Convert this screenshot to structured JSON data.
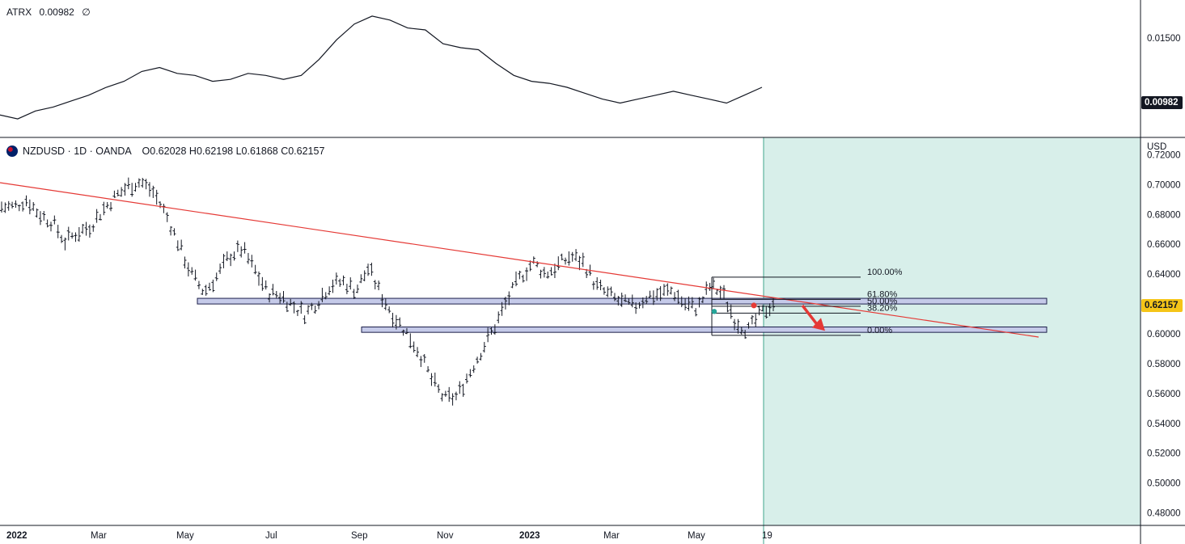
{
  "indicator": {
    "name": "ATRX",
    "value": "0.00982",
    "extra": "∅",
    "axis_ticks": [
      "0.01500"
    ],
    "badge": "0.00982"
  },
  "symbol": {
    "title": "NZDUSD · 1D · OANDA",
    "ohlc": "O0.62028  H0.62198  L0.61868  C0.62157",
    "currency": "USD",
    "last_price_badge": "0.62157",
    "price_ticks": [
      "0.72000",
      "0.70000",
      "0.68000",
      "0.66000",
      "0.64000",
      "0.62000",
      "0.60000",
      "0.58000",
      "0.56000",
      "0.54000",
      "0.52000",
      "0.50000",
      "0.48000"
    ],
    "time_ticks": [
      "2022",
      "Mar",
      "May",
      "Jul",
      "Sep",
      "Nov",
      "2023",
      "Mar",
      "May",
      "19"
    ]
  },
  "fib_levels": [
    "100.00%",
    "61.80%",
    "50.00%",
    "38.20%",
    "0.00%"
  ],
  "colors": {
    "trendline": "#e53935",
    "zone_fill": "#c5cae9",
    "zone_border": "#1c1f4a",
    "projection_fill": "#d8efea",
    "projection_border": "#3fa58c",
    "arrow": "#e53935",
    "bar": "#131722"
  },
  "chart_data": {
    "type": "line",
    "atr_series": [
      0.0084,
      0.0082,
      0.0086,
      0.0088,
      0.0091,
      0.0094,
      0.0098,
      0.0101,
      0.0106,
      0.0108,
      0.0105,
      0.0104,
      0.0101,
      0.0102,
      0.0105,
      0.0104,
      0.0102,
      0.0104,
      0.0112,
      0.0122,
      0.013,
      0.0134,
      0.0132,
      0.0128,
      0.0127,
      0.012,
      0.0118,
      0.0117,
      0.011,
      0.0104,
      0.0101,
      0.01,
      0.0098,
      0.0095,
      0.0092,
      0.009,
      0.0092,
      0.0094,
      0.0096,
      0.0094,
      0.0092,
      0.009,
      0.0094,
      0.0098
    ],
    "price_series": [
      0.685,
      0.685,
      0.69,
      0.68,
      0.675,
      0.662,
      0.668,
      0.672,
      0.683,
      0.692,
      0.699,
      0.702,
      0.695,
      0.68,
      0.66,
      0.64,
      0.628,
      0.638,
      0.652,
      0.657,
      0.643,
      0.628,
      0.626,
      0.619,
      0.613,
      0.622,
      0.633,
      0.635,
      0.629,
      0.644,
      0.626,
      0.612,
      0.601,
      0.588,
      0.569,
      0.556,
      0.558,
      0.574,
      0.59,
      0.605,
      0.623,
      0.638,
      0.648,
      0.64,
      0.646,
      0.652,
      0.648,
      0.632,
      0.626,
      0.621,
      0.618,
      0.625,
      0.627,
      0.629,
      0.62,
      0.617,
      0.632,
      0.627,
      0.609,
      0.602,
      0.613,
      0.621
    ],
    "ylim_price": [
      0.47,
      0.73
    ],
    "fib_high": 0.638,
    "fib_low": 0.599,
    "zones": [
      [
        0.62,
        0.6238
      ],
      [
        0.601,
        0.6046
      ]
    ]
  }
}
